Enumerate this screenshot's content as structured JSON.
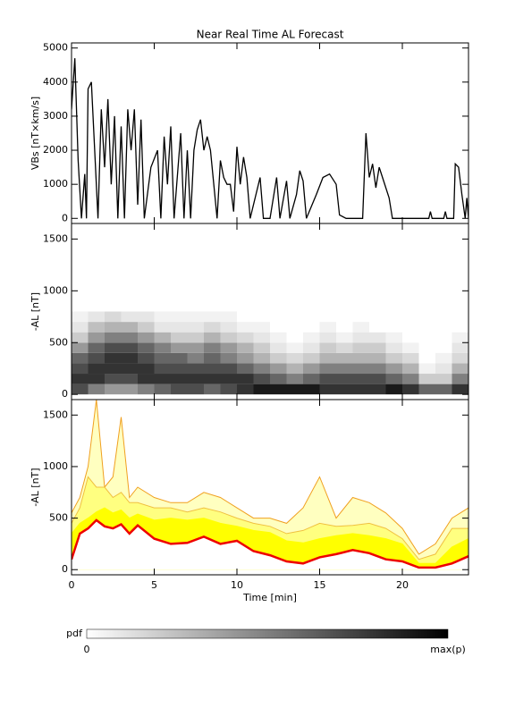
{
  "chart_data": [
    {
      "type": "line",
      "title": "Near Real Time AL Forecast",
      "ylabel": "VBs [nT×km/s]",
      "color": "#000000",
      "xlim": [
        0,
        24
      ],
      "xticks": [
        0,
        5,
        10,
        15,
        20
      ],
      "ylim": [
        -150,
        5150
      ],
      "yticks": [
        0,
        1000,
        2000,
        3000,
        4000,
        5000
      ],
      "x": [
        0,
        0.2,
        0.4,
        0.6,
        0.8,
        0.9,
        1.0,
        1.2,
        1.4,
        1.6,
        1.8,
        2.0,
        2.2,
        2.4,
        2.6,
        2.8,
        3.0,
        3.2,
        3.4,
        3.6,
        3.8,
        4.0,
        4.2,
        4.4,
        4.8,
        5.2,
        5.4,
        5.6,
        5.8,
        6.0,
        6.2,
        6.6,
        6.8,
        7.0,
        7.2,
        7.4,
        7.6,
        7.8,
        8.0,
        8.2,
        8.4,
        8.6,
        8.8,
        9.0,
        9.2,
        9.4,
        9.6,
        9.8,
        10.0,
        10.2,
        10.4,
        10.6,
        10.8,
        11.4,
        11.6,
        12.0,
        12.4,
        12.6,
        13.0,
        13.2,
        13.6,
        13.8,
        14.0,
        14.2,
        14.8,
        15.2,
        15.6,
        16.0,
        16.2,
        16.6,
        17.6,
        17.8,
        18.0,
        18.2,
        18.4,
        18.6,
        18.8,
        19.2,
        19.4,
        21.6,
        21.7,
        21.8,
        22.5,
        22.6,
        22.7,
        23.1,
        23.2,
        23.4,
        23.6,
        23.8,
        23.9,
        24.0
      ],
      "values": [
        3200,
        4700,
        1700,
        0,
        1300,
        0,
        3800,
        4000,
        2000,
        0,
        3200,
        1500,
        3500,
        1000,
        3000,
        0,
        2700,
        0,
        3200,
        2000,
        3200,
        400,
        2900,
        0,
        1500,
        2000,
        0,
        2400,
        1000,
        2700,
        0,
        2500,
        0,
        2000,
        0,
        2000,
        2600,
        2900,
        2000,
        2400,
        2000,
        1000,
        0,
        1700,
        1200,
        1000,
        1000,
        200,
        2100,
        1000,
        1800,
        1200,
        0,
        1200,
        0,
        0,
        1200,
        0,
        1100,
        0,
        700,
        1400,
        1100,
        0,
        700,
        1200,
        1300,
        1000,
        100,
        0,
        0,
        2500,
        1200,
        1600,
        900,
        1500,
        1200,
        600,
        0,
        0,
        200,
        0,
        0,
        200,
        0,
        0,
        1600,
        1500,
        700,
        0,
        600,
        0
      ]
    },
    {
      "type": "heatmap",
      "ylabel": "-AL [nT]",
      "xlim": [
        0,
        24
      ],
      "xticks": [
        0,
        5,
        10,
        15,
        20
      ],
      "ylim": [
        -50,
        1650
      ],
      "yticks": [
        0,
        500,
        1000,
        1500
      ],
      "xbins": [
        0,
        1,
        2,
        3,
        4,
        5,
        6,
        7,
        8,
        9,
        10,
        11,
        12,
        13,
        14,
        15,
        16,
        17,
        18,
        19,
        20,
        21,
        22,
        23,
        24
      ],
      "ybins": [
        0,
        100,
        200,
        300,
        400,
        500,
        600,
        700,
        800
      ],
      "z": [
        [
          0.7,
          0.8,
          0.7,
          0.6,
          0.4,
          0.2,
          0.1,
          0.05
        ],
        [
          0.5,
          0.8,
          0.8,
          0.7,
          0.6,
          0.4,
          0.25,
          0.1
        ],
        [
          0.4,
          0.7,
          0.8,
          0.8,
          0.7,
          0.5,
          0.3,
          0.15
        ],
        [
          0.4,
          0.7,
          0.8,
          0.8,
          0.7,
          0.5,
          0.3,
          0.1
        ],
        [
          0.5,
          0.8,
          0.8,
          0.7,
          0.6,
          0.4,
          0.2,
          0.1
        ],
        [
          0.6,
          0.8,
          0.7,
          0.6,
          0.5,
          0.3,
          0.1,
          0.05
        ],
        [
          0.7,
          0.8,
          0.7,
          0.6,
          0.4,
          0.2,
          0.1,
          0.05
        ],
        [
          0.7,
          0.8,
          0.7,
          0.5,
          0.4,
          0.2,
          0.1,
          0.05
        ],
        [
          0.6,
          0.8,
          0.7,
          0.6,
          0.5,
          0.3,
          0.15,
          0.05
        ],
        [
          0.7,
          0.8,
          0.7,
          0.5,
          0.4,
          0.2,
          0.1,
          0.05
        ],
        [
          0.8,
          0.8,
          0.6,
          0.4,
          0.3,
          0.15,
          0.05,
          0
        ],
        [
          0.9,
          0.7,
          0.5,
          0.3,
          0.2,
          0.1,
          0.05,
          0
        ],
        [
          0.9,
          0.6,
          0.4,
          0.2,
          0.1,
          0.05,
          0,
          0
        ],
        [
          0.9,
          0.5,
          0.3,
          0.15,
          0.05,
          0,
          0,
          0
        ],
        [
          0.9,
          0.6,
          0.4,
          0.2,
          0.1,
          0.05,
          0,
          0
        ],
        [
          0.8,
          0.7,
          0.5,
          0.3,
          0.2,
          0.1,
          0.05,
          0
        ],
        [
          0.8,
          0.7,
          0.5,
          0.3,
          0.15,
          0.05,
          0,
          0
        ],
        [
          0.8,
          0.7,
          0.5,
          0.3,
          0.2,
          0.1,
          0.05,
          0
        ],
        [
          0.8,
          0.7,
          0.5,
          0.3,
          0.2,
          0.1,
          0,
          0
        ],
        [
          0.9,
          0.6,
          0.4,
          0.2,
          0.1,
          0.05,
          0,
          0
        ],
        [
          0.8,
          0.5,
          0.3,
          0.15,
          0.05,
          0,
          0,
          0
        ],
        [
          0.6,
          0.2,
          0.05,
          0,
          0,
          0,
          0,
          0
        ],
        [
          0.6,
          0.2,
          0.1,
          0.05,
          0,
          0,
          0,
          0
        ],
        [
          0.8,
          0.5,
          0.3,
          0.15,
          0.1,
          0.05,
          0,
          0
        ]
      ]
    },
    {
      "type": "area",
      "ylabel": "-AL [nT]",
      "xlabel": "Time [min]",
      "xlim": [
        0,
        24
      ],
      "xticks": [
        0,
        5,
        10,
        15,
        20
      ],
      "ylim": [
        -50,
        1650
      ],
      "yticks": [
        0,
        500,
        1000,
        1500
      ],
      "x": [
        0,
        0.5,
        1,
        1.5,
        2,
        2.5,
        3,
        3.5,
        4,
        5,
        6,
        7,
        8,
        9,
        10,
        11,
        12,
        13,
        14,
        15,
        16,
        17,
        18,
        19,
        20,
        21,
        22,
        23,
        24
      ],
      "series": [
        {
          "color": "#f0a020",
          "fill": "#ffffc0",
          "values": [
            550,
            700,
            1000,
            1650,
            800,
            900,
            1480,
            700,
            800,
            700,
            650,
            650,
            750,
            700,
            600,
            500,
            500,
            450,
            600,
            900,
            500,
            700,
            650,
            550,
            400,
            150,
            250,
            500,
            600
          ]
        },
        {
          "color": "#f0c040",
          "fill": "#ffff80",
          "values": [
            450,
            600,
            900,
            800,
            800,
            700,
            750,
            650,
            650,
            600,
            600,
            560,
            600,
            560,
            500,
            450,
            420,
            350,
            380,
            450,
            420,
            430,
            450,
            400,
            300,
            100,
            150,
            400,
            400
          ]
        },
        {
          "color": "#ffff00",
          "fill": "#ffff00",
          "values": [
            350,
            450,
            500,
            560,
            600,
            550,
            580,
            500,
            540,
            480,
            500,
            480,
            500,
            450,
            420,
            380,
            360,
            280,
            260,
            300,
            330,
            350,
            330,
            300,
            250,
            60,
            60,
            220,
            300
          ]
        },
        {
          "color": "#ee0000",
          "fill": "#ffffff",
          "values": [
            100,
            350,
            400,
            480,
            420,
            400,
            440,
            350,
            430,
            300,
            250,
            260,
            320,
            250,
            280,
            180,
            140,
            80,
            60,
            120,
            150,
            190,
            160,
            100,
            80,
            20,
            20,
            60,
            130
          ]
        }
      ]
    }
  ],
  "colorbar": {
    "label": "pdf",
    "min_label": "0",
    "max_label": "max(p)"
  }
}
